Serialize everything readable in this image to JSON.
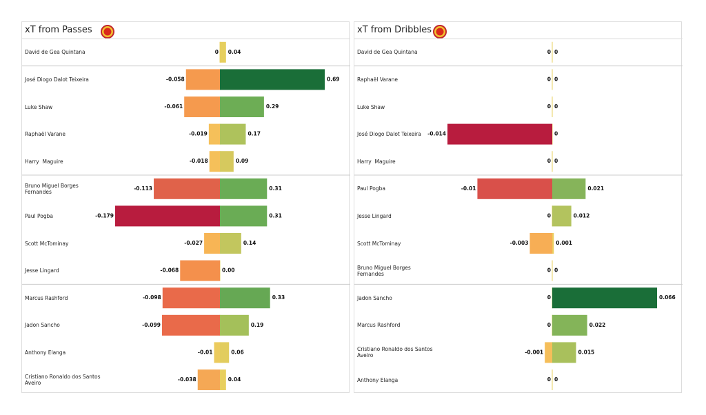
{
  "chart_data": [
    {
      "type": "diverging-bar",
      "title": "xT from Passes",
      "categories": [
        "David de Gea Quintana",
        "José Diogo Dalot Teixeira",
        "Luke Shaw",
        "Raphaël Varane",
        "Harry  Maguire",
        "Bruno Miguel Borges Fernandes",
        "Paul Pogba",
        "Scott McTominay",
        "Jesse Lingard",
        "Marcus Rashford",
        "Jadon Sancho",
        "Anthony Elanga",
        "Cristiano Ronaldo dos Santos Aveiro"
      ],
      "series": [
        {
          "values": [
            0,
            -0.058,
            -0.061,
            -0.019,
            -0.018,
            -0.113,
            -0.179,
            -0.027,
            -0.068,
            -0.098,
            -0.099,
            -0.01,
            -0.038
          ],
          "colors": [
            "#e8d060",
            "#f59a4e",
            "#f59a4e",
            "#f5c05a",
            "#f5c05a",
            "#e0624a",
            "#b81c3e",
            "#f7b555",
            "#f4904c",
            "#e96a4a",
            "#e96a4a",
            "#eccb5e",
            "#f5a855"
          ]
        },
        {
          "values": [
            0.04,
            0.69,
            0.29,
            0.17,
            0.09,
            0.31,
            0.31,
            0.14,
            0,
            0.33,
            0.19,
            0.06,
            0.04
          ],
          "value_labels": [
            "0.04",
            "0.69",
            "0.29",
            "0.17",
            "0.09",
            "0.31",
            "0.31",
            "0.14",
            "0.00",
            "0.33",
            "0.19",
            "0.06",
            "0.04"
          ],
          "colors": [
            "#e6cf5e",
            "#1a6e38",
            "#6dad55",
            "#aec25c",
            "#d6c95e",
            "#6aac55",
            "#6aac55",
            "#c2c65e",
            "#e8d060",
            "#66a854",
            "#a4c05a",
            "#e2cd5e",
            "#e8cf5e"
          ]
        }
      ]
    },
    {
      "type": "diverging-bar",
      "title": "xT from Dribbles",
      "categories": [
        "David de Gea Quintana",
        "Raphaël Varane",
        "Luke Shaw",
        "José Diogo Dalot Teixeira",
        "Harry  Maguire",
        "Paul Pogba",
        "Jesse Lingard",
        "Scott McTominay",
        "Bruno Miguel Borges Fernandes",
        "Jadon Sancho",
        "Marcus Rashford",
        "Cristiano Ronaldo dos Santos Aveiro",
        "Anthony Elanga"
      ],
      "series": [
        {
          "values": [
            0,
            0,
            0,
            -0.014,
            0,
            -0.01,
            0,
            -0.003,
            0,
            0,
            0,
            -0.001,
            0
          ],
          "colors": [
            "#e8d060",
            "#e8d060",
            "#e8d060",
            "#b81c3e",
            "#e8d060",
            "#d9504a",
            "#e8d060",
            "#f7ae55",
            "#e8d060",
            "#e8d060",
            "#e8d060",
            "#f5be5a",
            "#e8d060"
          ]
        },
        {
          "values": [
            0,
            0,
            0,
            0,
            0,
            0.021,
            0.012,
            0.001,
            0,
            0.066,
            0.022,
            0.015,
            0
          ],
          "colors": [
            "#e8d060",
            "#e8d060",
            "#e8d060",
            "#e8d060",
            "#e8d060",
            "#86b45a",
            "#b3c35e",
            "#eccd5e",
            "#e8d060",
            "#1a6e38",
            "#84b459",
            "#a9c05c",
            "#e8d060"
          ]
        }
      ]
    }
  ]
}
